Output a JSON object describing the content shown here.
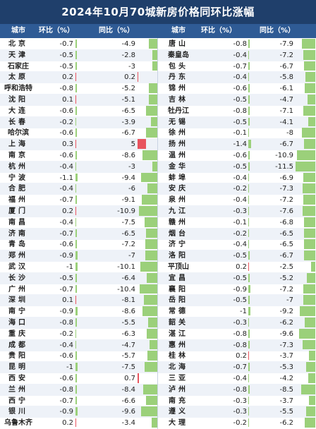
{
  "title": "2024年10月70城新房价格同环比涨幅",
  "headers": {
    "left": {
      "city": "城市",
      "mom": "环比（%）",
      "yoy": "同比（%）"
    },
    "right": {
      "city": "城市",
      "mom": "环比（%）",
      "yoy": "同比（%）"
    }
  },
  "colors": {
    "title_bg": "#1f3f6b",
    "header_bg": "#2f5b95",
    "decline": "#9bd07a",
    "increase": "#e8545f"
  },
  "chart_data": {
    "type": "table",
    "columns": [
      "城市",
      "环比（%）",
      "同比（%）"
    ],
    "left": [
      {
        "city": "北京",
        "mom": -0.7,
        "yoy": -4.9
      },
      {
        "city": "天津",
        "mom": -0.5,
        "yoy": -2.8
      },
      {
        "city": "石家庄",
        "mom": -0.5,
        "yoy": -3
      },
      {
        "city": "太原",
        "mom": 0.2,
        "yoy": 0.2
      },
      {
        "city": "呼和浩特",
        "mom": -0.8,
        "yoy": -5.2
      },
      {
        "city": "沈阳",
        "mom": 0.1,
        "yoy": -5.1
      },
      {
        "city": "大连",
        "mom": -0.6,
        "yoy": -6.5
      },
      {
        "city": "长春",
        "mom": -0.2,
        "yoy": -3.9
      },
      {
        "city": "哈尔滨",
        "mom": -0.6,
        "yoy": -6.7
      },
      {
        "city": "上海",
        "mom": 0.3,
        "yoy": 5
      },
      {
        "city": "南京",
        "mom": -0.6,
        "yoy": -8.6
      },
      {
        "city": "杭州",
        "mom": -0.4,
        "yoy": -3
      },
      {
        "city": "宁波",
        "mom": -1.1,
        "yoy": -9.4
      },
      {
        "city": "合肥",
        "mom": -0.4,
        "yoy": -6
      },
      {
        "city": "福州",
        "mom": -0.7,
        "yoy": -9.1
      },
      {
        "city": "厦门",
        "mom": 0.2,
        "yoy": -10.9
      },
      {
        "city": "南昌",
        "mom": -0.4,
        "yoy": -7.5
      },
      {
        "city": "济南",
        "mom": -0.7,
        "yoy": -6.5
      },
      {
        "city": "青岛",
        "mom": -0.6,
        "yoy": -7.2
      },
      {
        "city": "郑州",
        "mom": -0.9,
        "yoy": -7
      },
      {
        "city": "武汉",
        "mom": -1,
        "yoy": -10.1
      },
      {
        "city": "长沙",
        "mom": -0.5,
        "yoy": -6.4
      },
      {
        "city": "广州",
        "mom": -0.7,
        "yoy": -10.4
      },
      {
        "city": "深圳",
        "mom": 0.1,
        "yoy": -8.1
      },
      {
        "city": "南宁",
        "mom": -0.9,
        "yoy": -8.6
      },
      {
        "city": "海口",
        "mom": -0.8,
        "yoy": -5.5
      },
      {
        "city": "重庆",
        "mom": -0.2,
        "yoy": -6.3
      },
      {
        "city": "成都",
        "mom": -0.4,
        "yoy": -4.7
      },
      {
        "city": "贵阳",
        "mom": -0.6,
        "yoy": -5.7
      },
      {
        "city": "昆明",
        "mom": -1,
        "yoy": -7.5
      },
      {
        "city": "西安",
        "mom": -0.6,
        "yoy": 0.7
      },
      {
        "city": "兰州",
        "mom": -0.8,
        "yoy": -8.4
      },
      {
        "city": "西宁",
        "mom": -0.7,
        "yoy": -6.6
      },
      {
        "city": "银川",
        "mom": -0.9,
        "yoy": -9.6
      },
      {
        "city": "乌鲁木齐",
        "mom": 0.2,
        "yoy": -3.4
      }
    ],
    "right": [
      {
        "city": "唐山",
        "mom": -0.8,
        "yoy": -7.9
      },
      {
        "city": "秦皇岛",
        "mom": -0.4,
        "yoy": -7.2
      },
      {
        "city": "包头",
        "mom": -0.7,
        "yoy": -6.7
      },
      {
        "city": "丹东",
        "mom": -0.4,
        "yoy": -5.8
      },
      {
        "city": "锦州",
        "mom": -0.6,
        "yoy": -6.1
      },
      {
        "city": "吉林",
        "mom": -0.5,
        "yoy": -4.7
      },
      {
        "city": "牡丹江",
        "mom": -0.8,
        "yoy": -7.1
      },
      {
        "city": "无锡",
        "mom": -0.5,
        "yoy": -4.1
      },
      {
        "city": "徐州",
        "mom": -0.1,
        "yoy": -8
      },
      {
        "city": "扬州",
        "mom": -1.4,
        "yoy": -6.7
      },
      {
        "city": "温州",
        "mom": -0.6,
        "yoy": -10.9
      },
      {
        "city": "金华",
        "mom": -0.5,
        "yoy": -11.5
      },
      {
        "city": "蚌埠",
        "mom": -0.4,
        "yoy": -6.9
      },
      {
        "city": "安庆",
        "mom": -0.2,
        "yoy": -7.3
      },
      {
        "city": "泉州",
        "mom": -0.4,
        "yoy": -7.2
      },
      {
        "city": "九江",
        "mom": -0.3,
        "yoy": -7.6
      },
      {
        "city": "赣州",
        "mom": -0.1,
        "yoy": -6.8
      },
      {
        "city": "烟台",
        "mom": -0.2,
        "yoy": -6.5
      },
      {
        "city": "济宁",
        "mom": -0.4,
        "yoy": -6.5
      },
      {
        "city": "洛阳",
        "mom": -0.5,
        "yoy": -6.7
      },
      {
        "city": "平顶山",
        "mom": 0.2,
        "yoy": -2.5
      },
      {
        "city": "宜昌",
        "mom": -0.5,
        "yoy": -5.2
      },
      {
        "city": "襄阳",
        "mom": -0.9,
        "yoy": -7.2
      },
      {
        "city": "岳阳",
        "mom": -0.5,
        "yoy": -7
      },
      {
        "city": "常德",
        "mom": -1,
        "yoy": -9.2
      },
      {
        "city": "韶关",
        "mom": -0.3,
        "yoy": -6.2
      },
      {
        "city": "湛江",
        "mom": -0.8,
        "yoy": -9.6
      },
      {
        "city": "惠州",
        "mom": -0.8,
        "yoy": -7.3
      },
      {
        "city": "桂林",
        "mom": 0.2,
        "yoy": -3.7
      },
      {
        "city": "北海",
        "mom": -0.7,
        "yoy": -5.3
      },
      {
        "city": "三亚",
        "mom": -0.4,
        "yoy": -4.2
      },
      {
        "city": "泸州",
        "mom": -0.8,
        "yoy": -8.5
      },
      {
        "city": "南充",
        "mom": -0.3,
        "yoy": -3.7
      },
      {
        "city": "遵义",
        "mom": -0.3,
        "yoy": -5.5
      },
      {
        "city": "大理",
        "mom": -0.2,
        "yoy": -6.2
      }
    ]
  }
}
